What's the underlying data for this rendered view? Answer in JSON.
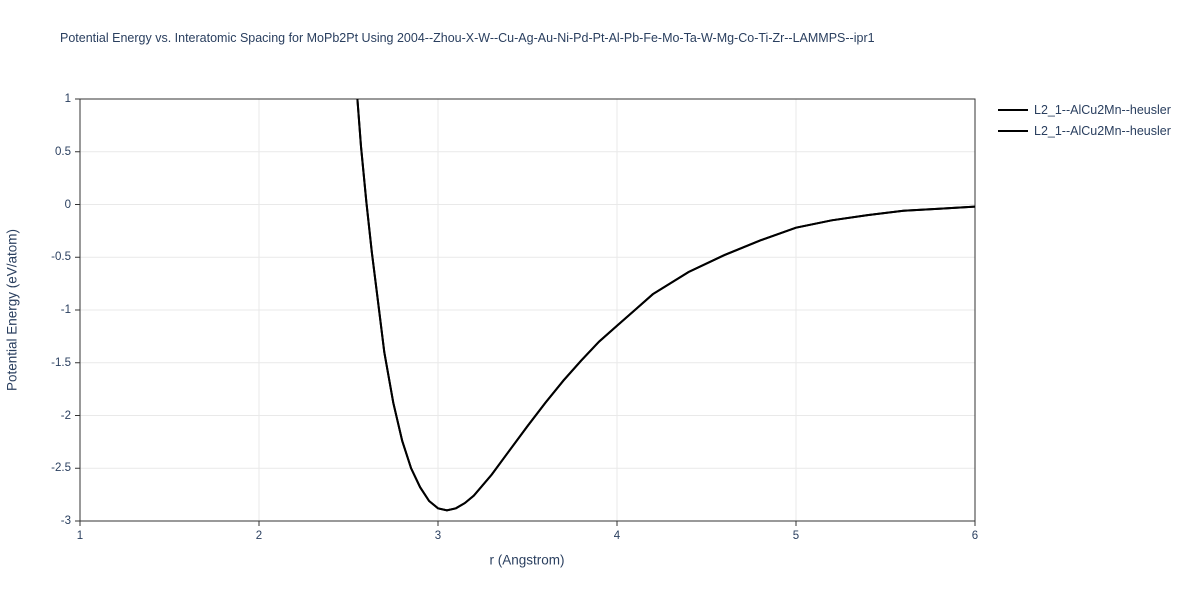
{
  "chart_data": {
    "type": "line",
    "title": "Potential Energy vs. Interatomic Spacing for MoPb2Pt Using 2004--Zhou-X-W--Cu-Ag-Au-Ni-Pd-Pt-Al-Pb-Fe-Mo-Ta-W-Mg-Co-Ti-Zr--LAMMPS--ipr1",
    "xlabel": "r (Angstrom)",
    "ylabel": "Potential Energy (eV/atom)",
    "xlim": [
      1,
      6
    ],
    "ylim": [
      -3,
      1
    ],
    "x_ticks": [
      1,
      2,
      3,
      4,
      5,
      6
    ],
    "x_tick_labels": [
      "1",
      "2",
      "3",
      "4",
      "5",
      "6"
    ],
    "y_ticks": [
      1,
      0.5,
      0,
      -0.5,
      -1,
      -1.5,
      -2,
      -2.5,
      -3
    ],
    "y_tick_labels": [
      "1",
      "0.5",
      "0",
      "-0.5",
      "-1",
      "-1.5",
      "-2",
      "-2.5",
      "-3"
    ],
    "grid": true,
    "legend_position": "top-right-outside",
    "series": [
      {
        "name": "L2_1--AlCu2Mn--heusler",
        "color": "#000000",
        "x": [
          2.55,
          2.57,
          2.6,
          2.63,
          2.66,
          2.7,
          2.75,
          2.8,
          2.85,
          2.9,
          2.95,
          3.0,
          3.05,
          3.1,
          3.15,
          3.2,
          3.3,
          3.4,
          3.5,
          3.6,
          3.7,
          3.8,
          3.9,
          4.0,
          4.2,
          4.4,
          4.6,
          4.8,
          5.0,
          5.2,
          5.4,
          5.6,
          5.8,
          6.0
        ],
        "y": [
          1.0,
          0.55,
          0.02,
          -0.45,
          -0.85,
          -1.4,
          -1.88,
          -2.24,
          -2.5,
          -2.68,
          -2.81,
          -2.88,
          -2.9,
          -2.88,
          -2.83,
          -2.76,
          -2.56,
          -2.33,
          -2.1,
          -1.88,
          -1.67,
          -1.48,
          -1.3,
          -1.15,
          -0.85,
          -0.64,
          -0.48,
          -0.34,
          -0.22,
          -0.15,
          -0.1,
          -0.06,
          -0.04,
          -0.02
        ]
      },
      {
        "name": "L2_1--AlCu2Mn--heusler",
        "color": "#000000",
        "x": [
          2.55,
          2.57,
          2.6,
          2.63,
          2.66,
          2.7,
          2.75,
          2.8,
          2.85,
          2.9,
          2.95,
          3.0,
          3.05,
          3.1,
          3.15,
          3.2,
          3.3,
          3.4,
          3.5,
          3.6,
          3.7,
          3.8,
          3.9,
          4.0,
          4.2,
          4.4,
          4.6,
          4.8,
          5.0,
          5.2,
          5.4,
          5.6,
          5.8,
          6.0
        ],
        "y": [
          1.0,
          0.55,
          0.02,
          -0.45,
          -0.85,
          -1.4,
          -1.88,
          -2.24,
          -2.5,
          -2.68,
          -2.81,
          -2.88,
          -2.9,
          -2.88,
          -2.83,
          -2.76,
          -2.56,
          -2.33,
          -2.1,
          -1.88,
          -1.67,
          -1.48,
          -1.3,
          -1.15,
          -0.85,
          -0.64,
          -0.48,
          -0.34,
          -0.22,
          -0.15,
          -0.1,
          -0.06,
          -0.04,
          -0.02
        ]
      }
    ]
  },
  "colors": {
    "text": "#2a3f5f",
    "axis": "#333333",
    "grid": "#e9e9e9",
    "background": "#ffffff",
    "curve": "#000000"
  }
}
